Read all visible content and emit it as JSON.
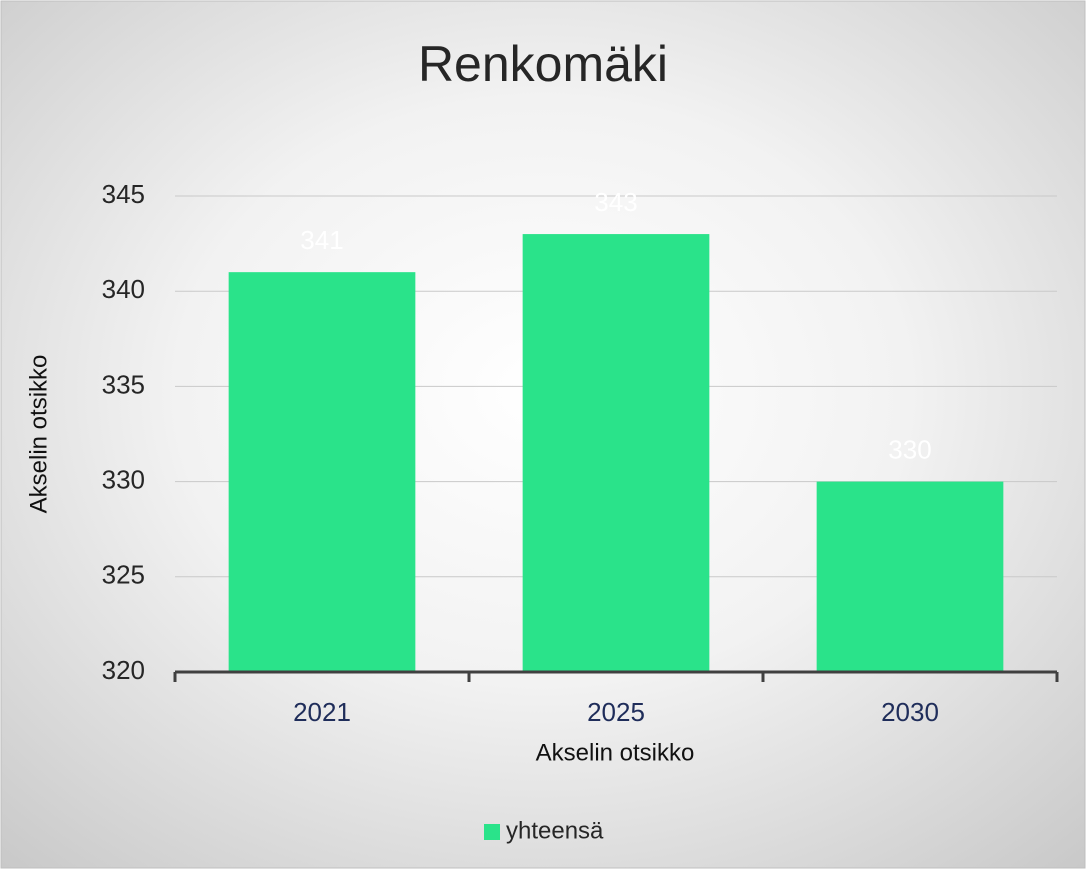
{
  "chart_data": {
    "type": "bar",
    "title": "Renkomäki",
    "x_label": "Akselin otsikko",
    "y_label": "Akselin otsikko",
    "categories": [
      "2021",
      "2025",
      "2030"
    ],
    "series": [
      {
        "name": "yhteensä",
        "color": "#2ae38a",
        "values": [
          341,
          343,
          330
        ]
      }
    ],
    "ylim": [
      320,
      345
    ],
    "yticks": [
      320,
      325,
      330,
      335,
      340,
      345
    ],
    "grid": true,
    "legend": "bottom",
    "data_labels": true
  }
}
